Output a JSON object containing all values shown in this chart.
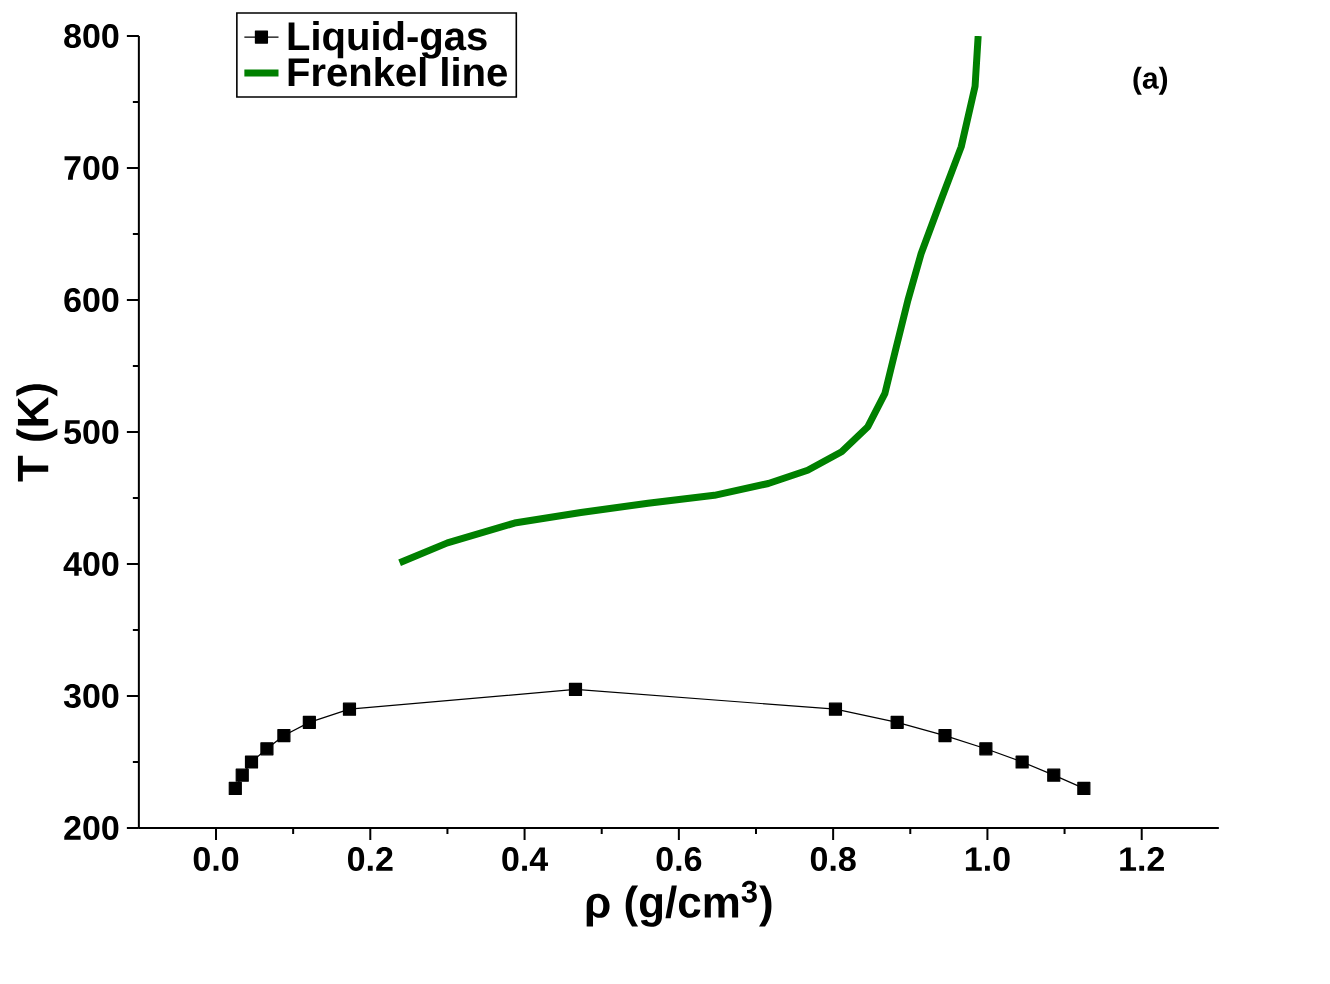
{
  "chart_data": {
    "type": "line",
    "xlabel": "ρ (g/cm$^{3}$)",
    "ylabel": "T (K)",
    "annotations": [
      "(a)"
    ],
    "xlim": [
      -0.1,
      1.3
    ],
    "xticks": [
      {
        "value": 0,
        "label": "0.0"
      },
      {
        "value": 0.2,
        "label": "0.2"
      },
      {
        "value": 0.4,
        "label": "0.4"
      },
      {
        "value": 0.6,
        "label": "0.6"
      },
      {
        "value": 0.8,
        "label": "0.8"
      },
      {
        "value": 1.0,
        "label": "1.0"
      },
      {
        "value": 1.2,
        "label": "1.2"
      }
    ],
    "ylim": [
      200,
      800
    ],
    "yticks": [
      200,
      300,
      400,
      500,
      600,
      700,
      800
    ],
    "legend": "top left",
    "grid": false,
    "series": [
      {
        "name": "Liquid-gas",
        "color": "#000000",
        "marker": "square",
        "x": [
          0.025,
          0.034,
          0.046,
          0.066,
          0.088,
          0.121,
          0.173,
          0.466,
          0.803,
          0.883,
          0.945,
          0.998,
          1.045,
          1.086,
          1.125
        ],
        "values": [
          230,
          240,
          250,
          260,
          270,
          280,
          290,
          305,
          290,
          280,
          270,
          260,
          250,
          240,
          230
        ]
      },
      {
        "name": "Frenkel line",
        "color": "#008000",
        "marker": "none",
        "x": [
          0.238,
          0.3,
          0.387,
          0.473,
          0.56,
          0.646,
          0.716,
          0.767,
          0.811,
          0.845,
          0.867,
          0.88,
          0.897,
          0.914,
          0.94,
          0.966,
          0.984,
          0.988
        ],
        "values": [
          401,
          416,
          431,
          439,
          446,
          452,
          461,
          471,
          485,
          504,
          529,
          560,
          600,
          635,
          676,
          716,
          762,
          800
        ]
      }
    ]
  }
}
